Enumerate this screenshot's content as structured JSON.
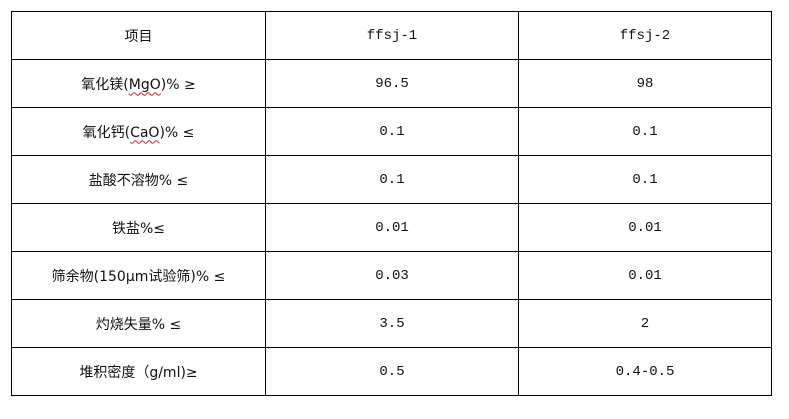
{
  "table": {
    "headers": [
      "项目",
      "ffsj-1",
      "ffsj-2"
    ],
    "rows": [
      {
        "item_pre": "氧化镁(",
        "item_squig": "MgO",
        "item_post": ")% ≥",
        "v1": "96.5",
        "v2": "98"
      },
      {
        "item_pre": "氧化钙(",
        "item_squig": "CaO",
        "item_post": ")% ≤",
        "v1": "0.1",
        "v2": "0.1"
      },
      {
        "item_pre": "盐酸不溶物% ≤",
        "item_squig": "",
        "item_post": "",
        "v1": "0.1",
        "v2": "0.1"
      },
      {
        "item_pre": "铁盐%≤",
        "item_squig": "",
        "item_post": "",
        "v1": "0.01",
        "v2": "0.01"
      },
      {
        "item_pre": "筛余物(150μm试验筛)% ≤",
        "item_squig": "",
        "item_post": "",
        "v1": "0.03",
        "v2": "0.01"
      },
      {
        "item_pre": "灼烧失量% ≤",
        "item_squig": "",
        "item_post": "",
        "v1": "3.5",
        "v2": "2"
      },
      {
        "item_pre": "堆积密度（g/ml)≥",
        "item_squig": "",
        "item_post": "",
        "v1": "0.5",
        "v2": "0.4-0.5"
      }
    ]
  }
}
